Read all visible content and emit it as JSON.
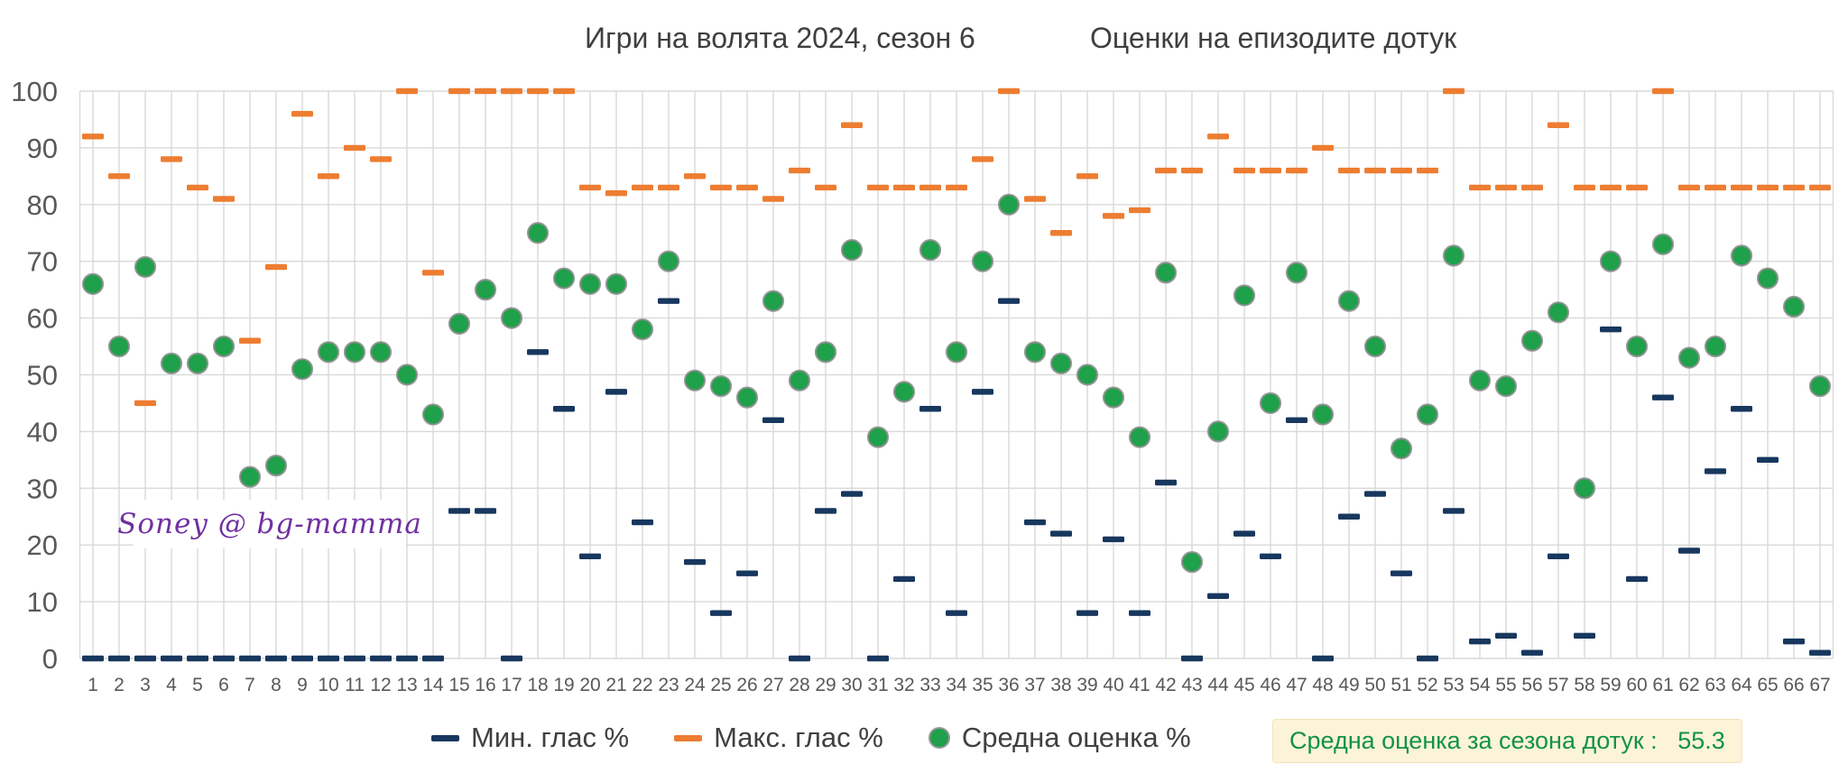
{
  "title": {
    "part1": "Игри на волята 2024, сезон 6",
    "part2": "Оценки на епизодите дотук"
  },
  "watermark": "Soney @ bg-mamma",
  "legend": {
    "items": [
      {
        "label": "Мин. глас %",
        "series": "min"
      },
      {
        "label": "Макс. глас %",
        "series": "max"
      },
      {
        "label": "Средна оценка %",
        "series": "avg"
      }
    ]
  },
  "annotation": {
    "label": "Средна оценка за сезона дотук :",
    "value": "55.3"
  },
  "colors": {
    "min": "#17375E",
    "max": "#ED7D31",
    "avg": "#1FA04A",
    "avg_ring": "#8C8C8C",
    "grid": "#D9D9D9",
    "axis_text": "#595959",
    "title_text": "#3f3f3f",
    "watermark": "#7030A0",
    "annotation_bg": "#FCF4D8",
    "annotation_text": "#13914C"
  },
  "chart_data": {
    "type": "scatter",
    "title": "Игри на волята 2024, сезон 6 — Оценки на епизодите дотук",
    "xlabel": "",
    "ylabel": "",
    "ylim": [
      0,
      100
    ],
    "ystep": 10,
    "grid": true,
    "legend_position": "bottom",
    "x": [
      1,
      2,
      3,
      4,
      5,
      6,
      7,
      8,
      9,
      10,
      11,
      12,
      13,
      14,
      15,
      16,
      17,
      18,
      19,
      20,
      21,
      22,
      23,
      24,
      25,
      26,
      27,
      28,
      29,
      30,
      31,
      32,
      33,
      34,
      35,
      36,
      37,
      38,
      39,
      40,
      41,
      42,
      43,
      44,
      45,
      46,
      47,
      48,
      49,
      50,
      51,
      52,
      53,
      54,
      55,
      56,
      57,
      58,
      59,
      60,
      61,
      62,
      63,
      64,
      65,
      66,
      67
    ],
    "series": [
      {
        "name": "Мин. глас %",
        "marker": "dash",
        "color_key": "min",
        "values": [
          0,
          0,
          0,
          0,
          0,
          0,
          0,
          0,
          0,
          0,
          0,
          0,
          0,
          0,
          26,
          26,
          0,
          54,
          44,
          18,
          47,
          24,
          63,
          17,
          8,
          15,
          42,
          0,
          26,
          29,
          0,
          14,
          44,
          8,
          47,
          63,
          24,
          22,
          8,
          21,
          8,
          31,
          0,
          11,
          22,
          18,
          42,
          0,
          25,
          29,
          15,
          0,
          26,
          3,
          4,
          1,
          18,
          4,
          58,
          14,
          46,
          19,
          33,
          44,
          35,
          3,
          1
        ]
      },
      {
        "name": "Макс. глас %",
        "marker": "dash",
        "color_key": "max",
        "values": [
          92,
          85,
          45,
          88,
          83,
          81,
          56,
          69,
          96,
          85,
          90,
          88,
          100,
          68,
          100,
          100,
          100,
          100,
          100,
          83,
          82,
          83,
          83,
          85,
          83,
          83,
          81,
          86,
          83,
          94,
          83,
          83,
          83,
          83,
          88,
          100,
          81,
          75,
          85,
          78,
          79,
          86,
          86,
          92,
          86,
          86,
          86,
          90,
          86,
          86,
          86,
          86,
          100,
          83,
          83,
          83,
          94,
          83,
          83,
          83,
          100,
          83,
          83,
          83,
          83,
          83,
          83
        ]
      },
      {
        "name": "Средна оценка %",
        "marker": "circle",
        "color_key": "avg",
        "values": [
          66,
          55,
          69,
          52,
          52,
          55,
          32,
          34,
          51,
          54,
          54,
          54,
          50,
          43,
          59,
          65,
          60,
          75,
          67,
          66,
          66,
          58,
          70,
          49,
          48,
          46,
          63,
          49,
          54,
          72,
          39,
          47,
          72,
          54,
          70,
          80,
          54,
          52,
          50,
          46,
          39,
          68,
          17,
          40,
          64,
          45,
          68,
          43,
          63,
          55,
          37,
          43,
          71,
          49,
          48,
          56,
          61,
          30,
          70,
          55,
          73,
          53,
          55,
          71,
          67,
          62,
          48
        ]
      }
    ],
    "season_average": 55.3
  }
}
